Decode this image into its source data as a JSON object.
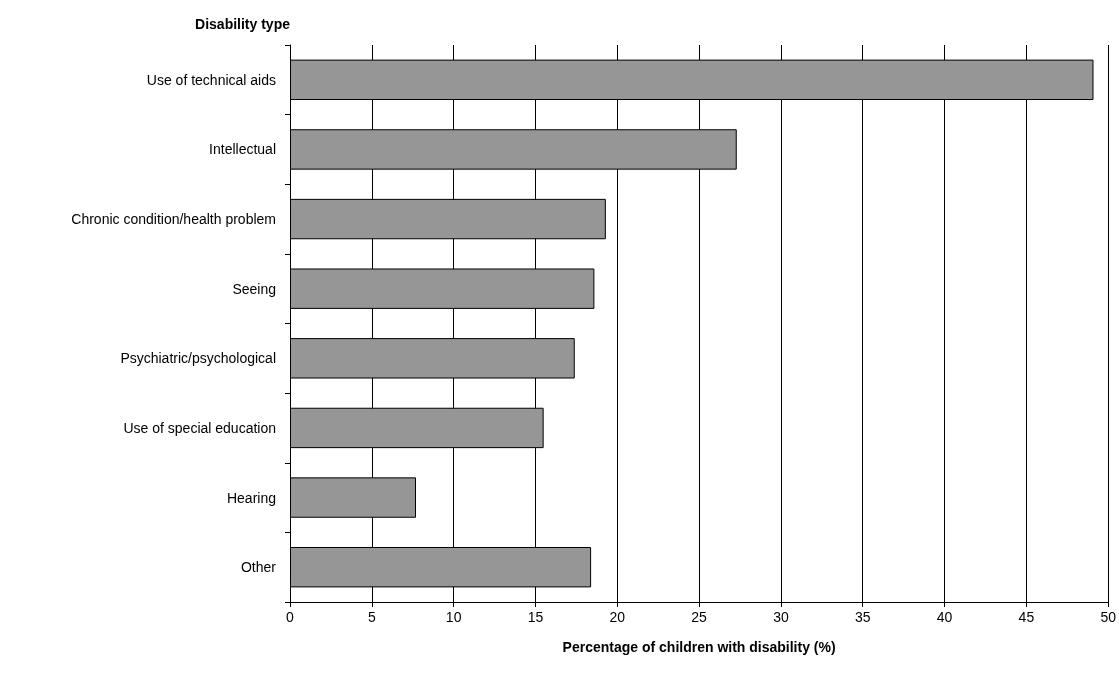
{
  "chart_data": {
    "type": "bar",
    "orientation": "horizontal",
    "ylabel": "Disability type",
    "xlabel": "Percentage of children with disability (%)",
    "categories": [
      "Use of technical aids",
      "Intellectual",
      "Chronic condition/health problem",
      "Seeing",
      "Psychiatric/psychological",
      "Use of special education",
      "Hearing",
      "Other"
    ],
    "values": [
      49.1,
      27.3,
      19.3,
      18.6,
      17.4,
      15.5,
      7.7,
      18.4
    ],
    "color": "#969696",
    "xlim": [
      0,
      50
    ],
    "xticks": [
      0,
      5,
      10,
      15,
      20,
      25,
      30,
      35,
      40,
      45,
      50
    ],
    "grid": "x"
  }
}
